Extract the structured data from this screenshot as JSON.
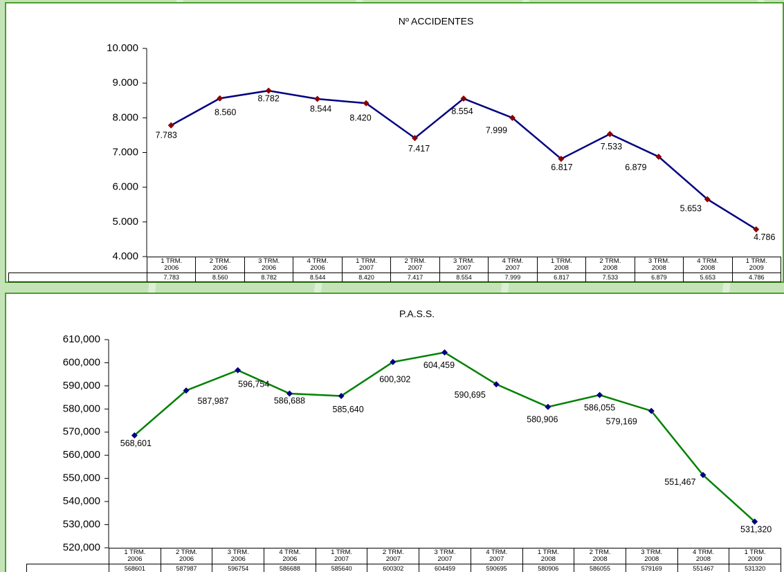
{
  "chart_data": [
    {
      "type": "line",
      "title": "Nº ACCIDENTES",
      "categories": [
        "1 TRM. 2006",
        "2 TRM. 2006",
        "3 TRM. 2006",
        "4 TRM. 2006",
        "1 TRM. 2007",
        "2 TRM. 2007",
        "3 TRM. 2007",
        "4 TRM. 2007",
        "1 TRM. 2008",
        "2 TRM. 2008",
        "3 TRM. 2008",
        "4 TRM. 2008",
        "1 TRM. 2009"
      ],
      "series": [
        {
          "name": "Nº ACCIDENTES",
          "color": "#000080",
          "marker_color": "#8b0000",
          "values": [
            7783,
            8560,
            8782,
            8544,
            8420,
            7417,
            8554,
            7999,
            6817,
            7533,
            6879,
            5653,
            4786
          ],
          "value_labels": [
            "7.783",
            "8.560",
            "8.782",
            "8.544",
            "8.420",
            "7.417",
            "8.554",
            "7.999",
            "6.817",
            "7.533",
            "6.879",
            "5.653",
            "4.786"
          ]
        }
      ],
      "ylim": [
        4000,
        10000
      ],
      "yticks": [
        {
          "value": 4000,
          "label": "4.000"
        },
        {
          "value": 5000,
          "label": "5.000"
        },
        {
          "value": 6000,
          "label": "6.000"
        },
        {
          "value": 7000,
          "label": "7.000"
        },
        {
          "value": 8000,
          "label": "8.000"
        },
        {
          "value": 9000,
          "label": "9.000"
        },
        {
          "value": 10000,
          "label": "10.000"
        }
      ]
    },
    {
      "type": "line",
      "title": "P.A.S.S.",
      "categories": [
        "1 TRM. 2006",
        "2 TRM. 2006",
        "3 TRM. 2006",
        "4 TRM. 2006",
        "1 TRM. 2007",
        "2 TRM. 2007",
        "3 TRM. 2007",
        "4 TRM. 2007",
        "1 TRM. 2008",
        "2 TRM. 2008",
        "3 TRM. 2008",
        "4 TRM. 2008",
        "1 TRM. 2009"
      ],
      "series": [
        {
          "name": "P.A.S.S.",
          "color": "#008000",
          "marker_color": "#000080",
          "values": [
            568601,
            587987,
            596754,
            586688,
            585640,
            600302,
            604459,
            590695,
            580906,
            586055,
            579169,
            551467,
            531320
          ],
          "value_labels": [
            "568,601",
            "587,987",
            "596,754",
            "586,688",
            "585,640",
            "600,302",
            "604,459",
            "590,695",
            "580,906",
            "586,055",
            "579,169",
            "551,467",
            "531,320"
          ]
        }
      ],
      "ylim": [
        520000,
        610000
      ],
      "yticks": [
        {
          "value": 520000,
          "label": "520,000"
        },
        {
          "value": 530000,
          "label": "530,000"
        },
        {
          "value": 540000,
          "label": "540,000"
        },
        {
          "value": 550000,
          "label": "550,000"
        },
        {
          "value": 560000,
          "label": "560,000"
        },
        {
          "value": 570000,
          "label": "570,000"
        },
        {
          "value": 580000,
          "label": "580,000"
        },
        {
          "value": 590000,
          "label": "590,000"
        },
        {
          "value": 600000,
          "label": "600,000"
        },
        {
          "value": 610000,
          "label": "610,000"
        }
      ]
    }
  ]
}
